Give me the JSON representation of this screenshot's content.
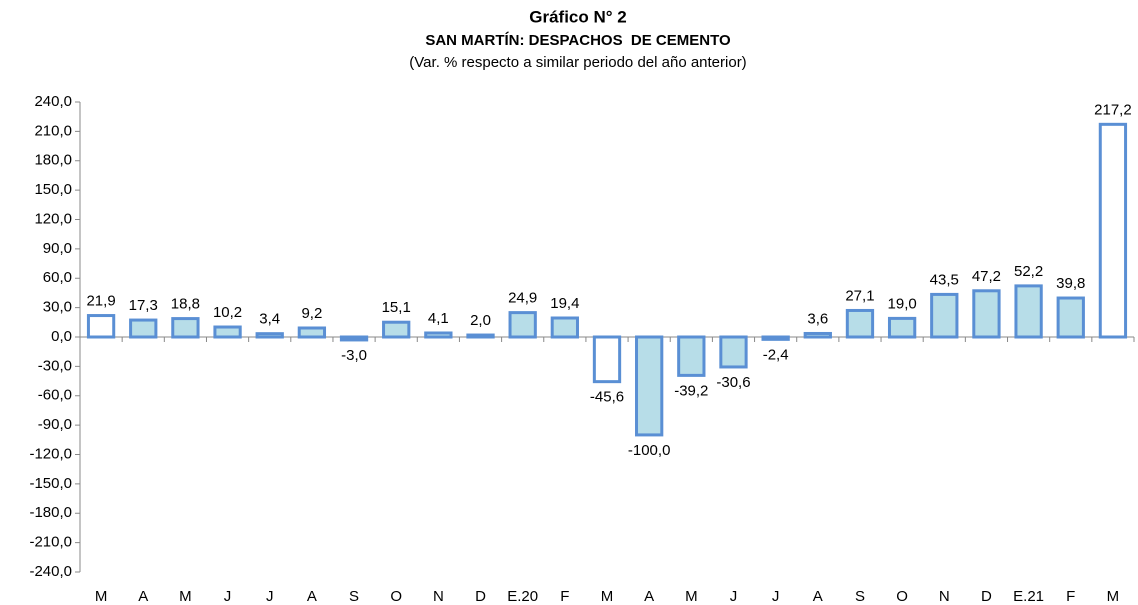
{
  "chart_data": {
    "type": "bar",
    "title": "Gráfico N° 2",
    "subtitle": "SAN MARTÍN: DESPACHOS  DE CEMENTO",
    "subtitle2": "(Var. % respecto a similar periodo del año anterior)",
    "categories": [
      "M",
      "A",
      "M",
      "J",
      "J",
      "A",
      "S",
      "O",
      "N",
      "D",
      "E.20",
      "F",
      "M",
      "A",
      "M",
      "J",
      "J",
      "A",
      "S",
      "O",
      "N",
      "D",
      "E.21",
      "F",
      "M"
    ],
    "values": [
      21.9,
      17.3,
      18.8,
      10.2,
      3.4,
      9.2,
      -3.0,
      15.1,
      4.1,
      2.0,
      24.9,
      19.4,
      -45.6,
      -100.0,
      -39.2,
      -30.6,
      -2.4,
      3.6,
      27.1,
      19.0,
      43.5,
      47.2,
      52.2,
      39.8,
      217.2
    ],
    "value_labels": [
      "21,9",
      "17,3",
      "18,8",
      "10,2",
      "3,4",
      "9,2",
      "-3,0",
      "15,1",
      "4,1",
      "2,0",
      "24,9",
      "19,4",
      "-45,6",
      "-100,0",
      "-39,2",
      "-30,6",
      "-2,4",
      "3,6",
      "27,1",
      "19,0",
      "43,5",
      "47,2",
      "52,2",
      "39,8",
      "217,2"
    ],
    "colors": [
      "#ffffff",
      "#b7dde8",
      "#b7dde8",
      "#b7dde8",
      "#b7dde8",
      "#b7dde8",
      "#b7dde8",
      "#b7dde8",
      "#b7dde8",
      "#b7dde8",
      "#b7dde8",
      "#b7dde8",
      "#ffffff",
      "#b7dde8",
      "#b7dde8",
      "#b7dde8",
      "#b7dde8",
      "#b7dde8",
      "#b7dde8",
      "#b7dde8",
      "#b7dde8",
      "#b7dde8",
      "#b7dde8",
      "#b7dde8",
      "#ffffff"
    ],
    "edge_color": "#5a8fd4",
    "ylim": [
      -240,
      240
    ],
    "yticks": [
      {
        "value": -240,
        "label": "-240,0"
      },
      {
        "value": -210,
        "label": "-210,0"
      },
      {
        "value": -180,
        "label": "-180,0"
      },
      {
        "value": -150,
        "label": "-150,0"
      },
      {
        "value": -120,
        "label": "-120,0"
      },
      {
        "value": -90,
        "label": "-90,0"
      },
      {
        "value": -60,
        "label": "-60,0"
      },
      {
        "value": -30,
        "label": "-30,0"
      },
      {
        "value": 0,
        "label": "0,0"
      },
      {
        "value": 30,
        "label": "30,0"
      },
      {
        "value": 60,
        "label": "60,0"
      },
      {
        "value": 90,
        "label": "90,0"
      },
      {
        "value": 120,
        "label": "120,0"
      },
      {
        "value": 150,
        "label": "150,0"
      },
      {
        "value": 180,
        "label": "180,0"
      },
      {
        "value": 210,
        "label": "210,0"
      },
      {
        "value": 240,
        "label": "240,0"
      }
    ],
    "grid": false
  }
}
